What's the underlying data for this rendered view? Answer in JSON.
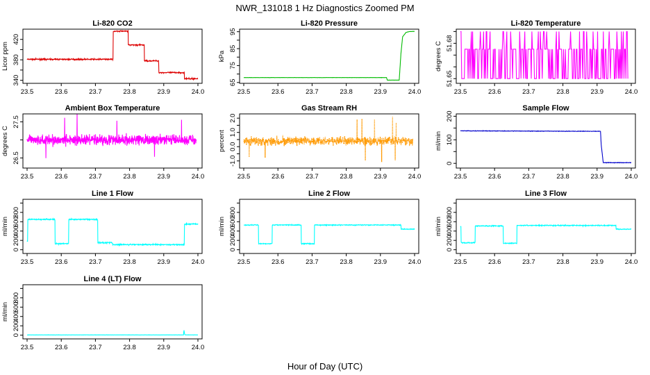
{
  "figure": {
    "title": "NWR_131018  1 Hz Diagnostics Zoomed PM",
    "xlabel": "Hour of Day (UTC)"
  },
  "chart_data": [
    {
      "type": "line",
      "title": "Li-820 CO2",
      "ylabel": "Licor ppm",
      "color": "#dd0000",
      "xlim": [
        23.5,
        24.0
      ],
      "xticks": [
        23.5,
        23.6,
        23.7,
        23.8,
        23.9,
        24.0
      ],
      "ylim": [
        334,
        440
      ],
      "yticks": [
        340,
        360,
        380,
        400,
        420
      ],
      "yticklabels": [
        "340",
        "",
        "380",
        "",
        "420"
      ],
      "mode": "step",
      "x": [
        23.5,
        23.752,
        23.752,
        23.796,
        23.796,
        23.843,
        23.843,
        23.885,
        23.885,
        23.96,
        23.96,
        24.0
      ],
      "y": [
        381,
        381,
        436,
        436,
        409,
        409,
        378,
        378,
        355,
        355,
        343,
        343
      ],
      "noise": 1.2
    },
    {
      "type": "line",
      "title": "Li-820 Pressure",
      "ylabel": "kPa",
      "color": "#00bb00",
      "xlim": [
        23.5,
        24.0
      ],
      "xticks": [
        23.5,
        23.6,
        23.7,
        23.8,
        23.9,
        24.0
      ],
      "ylim": [
        64.5,
        96.5
      ],
      "yticks": [
        65,
        70,
        75,
        80,
        85,
        90,
        95
      ],
      "yticklabels": [
        "65",
        "",
        "75",
        "",
        "85",
        "",
        "95"
      ],
      "mode": "linear",
      "x": [
        23.5,
        23.918,
        23.92,
        23.955,
        23.96,
        23.965,
        23.975,
        23.985,
        24.0
      ],
      "y": [
        67.9,
        67.9,
        66.4,
        66.4,
        82,
        92,
        94.6,
        95.1,
        95.2
      ],
      "noise": 0.05
    },
    {
      "type": "binary",
      "title": "Li-820 Temperature",
      "ylabel": "degrees C",
      "color": "#ff00ff",
      "xlim": [
        23.5,
        24.0
      ],
      "xticks": [
        23.5,
        23.6,
        23.7,
        23.8,
        23.9,
        24.0
      ],
      "ylim": [
        51.646,
        51.692
      ],
      "yticks": [
        51.65,
        51.66,
        51.67,
        51.68,
        51.69
      ],
      "yticklabels": [
        "51.65",
        "",
        "",
        "51.68",
        ""
      ],
      "levels": [
        51.65,
        51.675,
        51.69
      ],
      "x_end": 23.99
    },
    {
      "type": "noise",
      "title": "Ambient Box Temperature",
      "ylabel": "degrees C",
      "color": "#ff00ff",
      "xlim": [
        23.5,
        24.0
      ],
      "xticks": [
        23.5,
        23.6,
        23.7,
        23.8,
        23.9,
        24.0
      ],
      "ylim": [
        26.22,
        27.72
      ],
      "yticks": [
        26.5,
        27.0,
        27.5
      ],
      "yticklabels": [
        "26.5",
        "",
        "27.5"
      ],
      "center": 27.0,
      "amp": 0.14,
      "spike": 0.75,
      "x_end": 23.995
    },
    {
      "type": "noise",
      "title": "Gas Stream RH",
      "ylabel": "percent",
      "color": "#ff9900",
      "dotted": true,
      "xlim": [
        23.5,
        24.0
      ],
      "xticks": [
        23.5,
        23.6,
        23.7,
        23.8,
        23.9,
        24.0
      ],
      "ylim": [
        -1.5,
        2.3
      ],
      "yticks": [
        -1.0,
        -0.5,
        0.0,
        0.5,
        1.0,
        1.5,
        2.0
      ],
      "yticklabels": [
        "-1.0",
        "",
        "0.0",
        "",
        "1.0",
        "",
        "2.0"
      ],
      "center": 0.4,
      "amp": 0.28,
      "spike": 1.7,
      "x_end": 23.995
    },
    {
      "type": "line",
      "title": "Sample Flow",
      "ylabel": "ml/min",
      "color": "#0000cc",
      "xlim": [
        23.5,
        24.0
      ],
      "xticks": [
        23.5,
        23.6,
        23.7,
        23.8,
        23.9,
        24.0
      ],
      "ylim": [
        -20,
        210
      ],
      "yticks": [
        0,
        50,
        100,
        150,
        200
      ],
      "yticklabels": [
        "0",
        "",
        "100",
        "",
        "200"
      ],
      "mode": "linear",
      "x": [
        23.5,
        23.91,
        23.912,
        23.918,
        24.0
      ],
      "y": [
        138,
        136,
        80,
        3,
        3
      ],
      "noise": 1.0
    },
    {
      "type": "line",
      "title": "Line 1 Flow",
      "ylabel": "ml/min",
      "color": "#00ffff",
      "xlim": [
        23.5,
        24.0
      ],
      "xticks": [
        23.5,
        23.6,
        23.7,
        23.8,
        23.9,
        24.0
      ],
      "ylim": [
        -80,
        1080
      ],
      "yticks": [
        0,
        200,
        400,
        600,
        800,
        1000
      ],
      "yticklabels": [
        "0",
        "200",
        "400",
        "600",
        "800",
        ""
      ],
      "mode": "step",
      "x": [
        23.5,
        23.502,
        23.502,
        23.582,
        23.582,
        23.622,
        23.622,
        23.707,
        23.707,
        23.75,
        23.75,
        23.96,
        23.96,
        24.0
      ],
      "y": [
        180,
        180,
        650,
        650,
        130,
        130,
        650,
        650,
        150,
        150,
        110,
        110,
        550,
        550
      ],
      "noise": 12
    },
    {
      "type": "line",
      "title": "Line 2 Flow",
      "ylabel": "ml/min",
      "color": "#00ffff",
      "xlim": [
        23.5,
        24.0
      ],
      "xticks": [
        23.5,
        23.6,
        23.7,
        23.8,
        23.9,
        24.0
      ],
      "ylim": [
        -80,
        1080
      ],
      "yticks": [
        0,
        200,
        400,
        600,
        800,
        1000
      ],
      "yticklabels": [
        "0",
        "200",
        "400",
        "600",
        "800",
        ""
      ],
      "mode": "step",
      "x": [
        23.5,
        23.543,
        23.543,
        23.583,
        23.583,
        23.668,
        23.668,
        23.707,
        23.707,
        23.96,
        23.96,
        24.0
      ],
      "y": [
        530,
        530,
        130,
        130,
        530,
        530,
        130,
        130,
        530,
        530,
        440,
        440
      ],
      "noise": 10
    },
    {
      "type": "line",
      "title": "Line 3 Flow",
      "ylabel": "ml/min",
      "color": "#00ffff",
      "xlim": [
        23.5,
        24.0
      ],
      "xticks": [
        23.5,
        23.6,
        23.7,
        23.8,
        23.9,
        24.0
      ],
      "ylim": [
        -80,
        1080
      ],
      "yticks": [
        0,
        200,
        400,
        600,
        800,
        1000
      ],
      "yticklabels": [
        "0",
        "200",
        "400",
        "600",
        "800",
        ""
      ],
      "mode": "step",
      "x": [
        23.5,
        23.502,
        23.502,
        23.543,
        23.543,
        23.625,
        23.625,
        23.665,
        23.665,
        23.955,
        23.955,
        24.0
      ],
      "y": [
        500,
        500,
        150,
        150,
        510,
        510,
        140,
        140,
        520,
        520,
        440,
        440
      ],
      "noise": 10
    },
    {
      "type": "line",
      "title": "Line 4 (LT) Flow",
      "ylabel": "ml/min",
      "color": "#00ffff",
      "xlim": [
        23.5,
        24.0
      ],
      "xticks": [
        23.5,
        23.6,
        23.7,
        23.8,
        23.9,
        24.0
      ],
      "ylim": [
        -80,
        1080
      ],
      "yticks": [
        0,
        200,
        400,
        600,
        800,
        1000
      ],
      "yticklabels": [
        "0",
        "200",
        "400",
        "600",
        "800",
        ""
      ],
      "mode": "linear",
      "x": [
        23.5,
        23.958,
        23.959,
        23.961,
        23.963,
        24.0
      ],
      "y": [
        5,
        5,
        120,
        20,
        5,
        5
      ],
      "noise": 2
    }
  ]
}
